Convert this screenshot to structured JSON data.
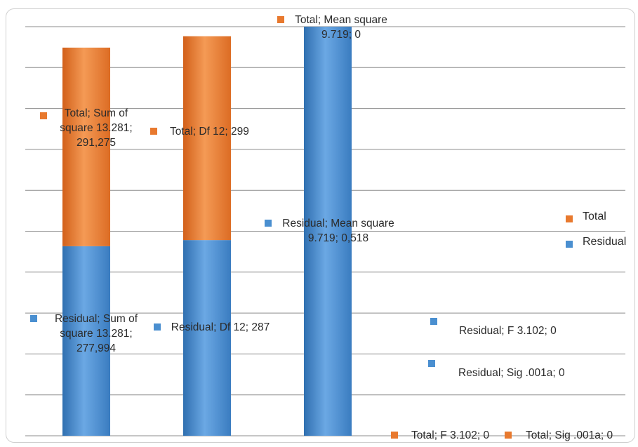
{
  "chart_data": {
    "type": "bar",
    "stacked": true,
    "ylim": [
      0,
      600
    ],
    "grid": true,
    "legend_position": "right",
    "categories": [
      "Sum of square 13.281",
      "Df 12",
      "Mean square 9.719",
      "F 3.102",
      "Sig .001a"
    ],
    "series": [
      {
        "name": "Residual",
        "color": "#4a8fd0",
        "values": [
          277.994,
          287,
          0.518,
          0,
          0
        ]
      },
      {
        "name": "Total",
        "color": "#e8792e",
        "values": [
          291.275,
          299,
          0,
          0,
          0
        ]
      }
    ],
    "data_labels": [
      {
        "id": "total-sum",
        "series": "Total",
        "text": "Total; Sum of square 13.281; 291,275"
      },
      {
        "id": "total-df",
        "series": "Total",
        "text": "Total; Df 12; 299"
      },
      {
        "id": "total-mean",
        "series": "Total",
        "text": "Total; Mean square 9.719; 0"
      },
      {
        "id": "residual-mean",
        "series": "Residual",
        "text": "Residual; Mean square 9.719; 0,518"
      },
      {
        "id": "residual-sum",
        "series": "Residual",
        "text": "Residual; Sum of square 13.281; 277,994"
      },
      {
        "id": "residual-df",
        "series": "Residual",
        "text": "Residual; Df 12; 287"
      },
      {
        "id": "residual-f",
        "series": "Residual",
        "text": "Residual; F 3.102; 0"
      },
      {
        "id": "residual-sig",
        "series": "Residual",
        "text": "Residual; Sig .001a; 0"
      },
      {
        "id": "total-f",
        "series": "Total",
        "text": "Total; F 3.102; 0"
      },
      {
        "id": "total-sig",
        "series": "Total",
        "text": "Total; Sig .001a; 0"
      }
    ],
    "legend": [
      {
        "label": "Total",
        "color": "#e8792e"
      },
      {
        "label": "Residual",
        "color": "#4a8fd0"
      }
    ]
  }
}
